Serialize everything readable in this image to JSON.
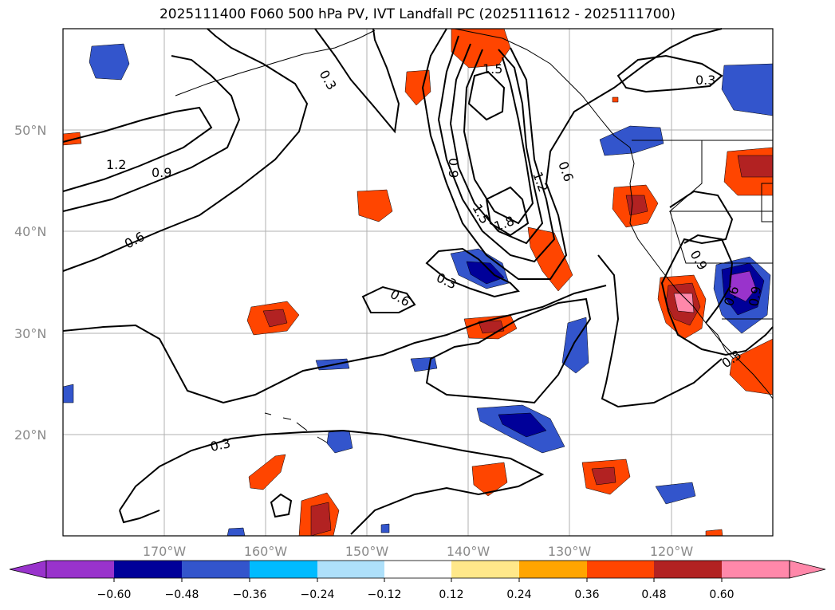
{
  "title": "2025111400 F060 500 hPa PV, IVT Landfall PC (2025111612 - 2025111700)",
  "map": {
    "lat_range": [
      10,
      60
    ],
    "lon_range": [
      -180,
      -110
    ],
    "lat_labels": [
      "50°N",
      "40°N",
      "30°N",
      "20°N"
    ],
    "lon_labels": [
      "170°W",
      "160°W",
      "150°W",
      "140°W",
      "130°W",
      "120°W"
    ]
  },
  "contour_labels": [
    "0.3",
    "1.5",
    "0.3",
    "1.2",
    "0.9",
    "0.9",
    "0.6",
    "1.2",
    "0.6",
    "1.5",
    "1.8",
    "0.6",
    "0.3",
    "0.6",
    "0.9",
    "0.9",
    "0.3",
    "0.3"
  ],
  "colorbar": {
    "ticks": [
      "−0.60",
      "−0.48",
      "−0.36",
      "−0.24",
      "−0.12",
      "0.12",
      "0.24",
      "0.36",
      "0.48",
      "0.60"
    ],
    "colors": [
      "#9933cc",
      "#000099",
      "#3355cc",
      "#00bbff",
      "#aee0fa",
      "#ffffff",
      "#ffe88a",
      "#ffa500",
      "#ff4500",
      "#b22222",
      "#ff88aa"
    ]
  }
}
